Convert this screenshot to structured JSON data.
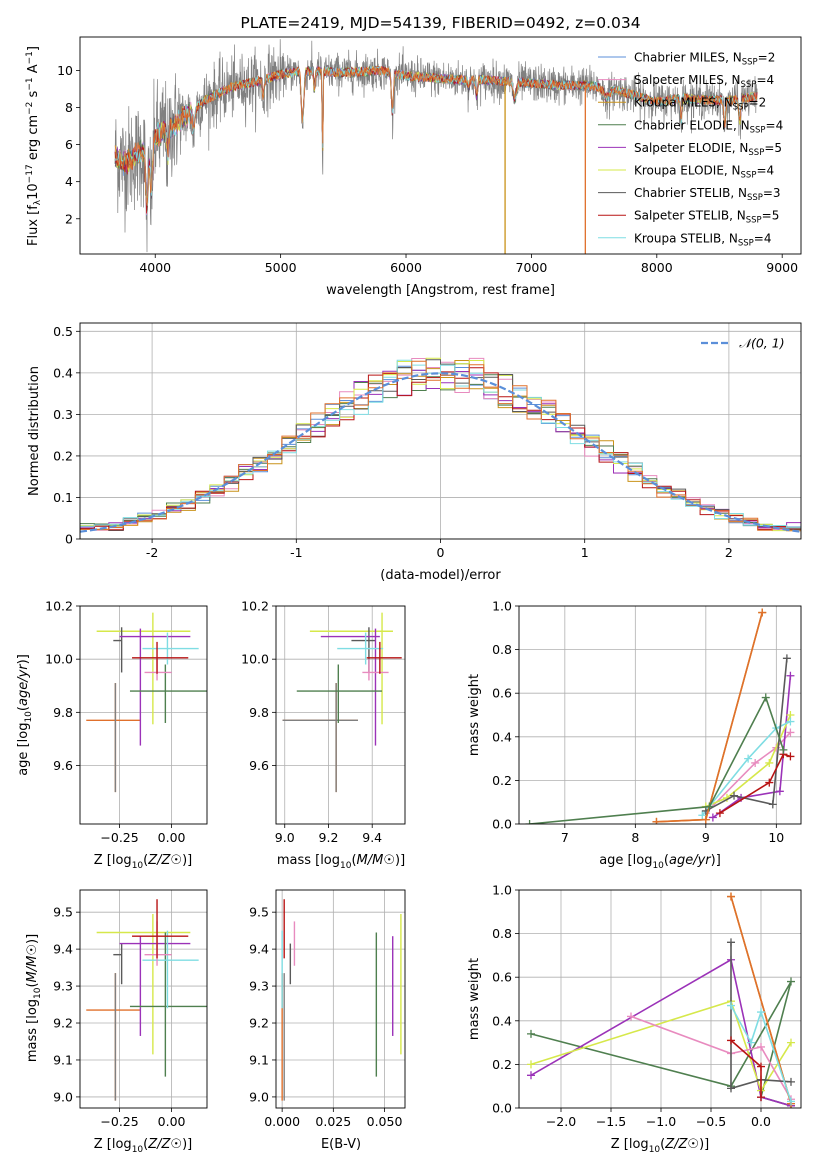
{
  "figure": {
    "title": "PLATE=2419, MJD=54139, FIBERID=0492, z=0.034"
  },
  "colors": {
    "Chabrier MILES": "#5b8fd9",
    "Salpeter MILES": "#e88bbf",
    "Kroupa MILES": "#c9921a",
    "Chabrier ELODIE": "#4f7f4f",
    "Salpeter ELODIE": "#9b32b8",
    "Kroupa ELODIE": "#d6e84a",
    "Chabrier STELIB": "#5a5a5a",
    "Salpeter STELIB": "#b81414",
    "Kroupa STELIB": "#7fdde3",
    "orange": "#e0702c",
    "gray": "#808080",
    "normal": "#5b8fd9"
  },
  "chart_data": [
    {
      "id": "spectrum",
      "type": "line",
      "title": "PLATE=2419, MJD=54139, FIBERID=0492, z=0.034",
      "xlabel": "wavelength [Angstrom, rest frame]",
      "ylabel": "Flux [f_λ10^-17 erg cm^-2 s^-1 A^-1]",
      "xlim": [
        3400,
        9150
      ],
      "ylim": [
        0.1,
        11.8
      ],
      "xticks": [
        4000,
        5000,
        6000,
        7000,
        8000,
        9000
      ],
      "yticks": [
        2,
        4,
        6,
        8,
        10
      ],
      "grid": false,
      "legend_position": "top-right",
      "legend": [
        {
          "label": "Chabrier MILES, N",
          "sub": "SSP",
          "suffix": "=2",
          "color": "#5b8fd9"
        },
        {
          "label": "Salpeter MILES, N",
          "sub": "SSP",
          "suffix": "=4",
          "color": "#e88bbf"
        },
        {
          "label": "Kroupa MILES, N",
          "sub": "SSP",
          "suffix": "=2",
          "color": "#c9921a"
        },
        {
          "label": "Chabrier ELODIE, N",
          "sub": "SSP",
          "suffix": "=4",
          "color": "#4f7f4f"
        },
        {
          "label": "Salpeter ELODIE, N",
          "sub": "SSP",
          "suffix": "=5",
          "color": "#9b32b8"
        },
        {
          "label": "Kroupa ELODIE, N",
          "sub": "SSP",
          "suffix": "=4",
          "color": "#d6e84a"
        },
        {
          "label": "Chabrier STELIB, N",
          "sub": "SSP",
          "suffix": "=3",
          "color": "#5a5a5a"
        },
        {
          "label": "Salpeter STELIB, N",
          "sub": "SSP",
          "suffix": "=5",
          "color": "#b81414"
        },
        {
          "label": "Kroupa STELIB, N",
          "sub": "SSP",
          "suffix": "=4",
          "color": "#7fdde3"
        }
      ],
      "continuum": {
        "x": [
          3680,
          3750,
          3900,
          4000,
          4200,
          4400,
          4600,
          4800,
          5000,
          5200,
          5400,
          5600,
          5800,
          6000,
          6200,
          6400,
          6600,
          6800,
          7000,
          7200,
          7400,
          7600,
          7800,
          8000,
          8200,
          8400,
          8600,
          8800
        ],
        "y": [
          5.4,
          5.0,
          5.6,
          6.4,
          7.3,
          8.4,
          9.1,
          9.4,
          9.8,
          10.0,
          9.9,
          9.9,
          10.0,
          9.7,
          9.6,
          9.5,
          9.5,
          9.4,
          9.3,
          9.2,
          9.2,
          9.1,
          8.7,
          8.3,
          8.5,
          8.4,
          8.4,
          8.6
        ]
      },
      "vertical_drops": [
        {
          "x": 6790,
          "y_min": 0.1,
          "color": "#c9921a"
        },
        {
          "x": 7430,
          "y_min": 0.1,
          "color": "#e0702c"
        }
      ]
    },
    {
      "id": "residuals",
      "type": "histogram",
      "xlabel": "(data-model)/error",
      "ylabel": "Normed distribution",
      "xlim": [
        -2.5,
        2.5
      ],
      "ylim": [
        0,
        0.52
      ],
      "xticks": [
        -2,
        -1,
        0,
        1,
        2
      ],
      "yticks": [
        0.0,
        0.1,
        0.2,
        0.3,
        0.4,
        0.5
      ],
      "grid": true,
      "legend_position": "top-right",
      "legend": [
        {
          "label": "𝒩(0, 1)",
          "color": "#5b8fd9",
          "style": "dashed"
        }
      ],
      "bin_width": 0.1,
      "bin_start": -2.5,
      "n_bins": 50
    },
    {
      "id": "age-Z",
      "type": "scatter",
      "xlabel": "Z [log10(Z/Z☉)]",
      "ylabel": "age  [log10(age/yr)]",
      "xlim": [
        -0.44,
        0.17
      ],
      "ylim": [
        9.38,
        10.2
      ],
      "xticks": [
        -0.25,
        0.0
      ],
      "xticklabels": [
        "−0.25",
        "0.00"
      ],
      "yticks": [
        9.6,
        9.8,
        10.0,
        10.2
      ],
      "yticklabels": [
        "9.6",
        "9.8",
        "10.0",
        "10.2"
      ],
      "grid": true
    },
    {
      "id": "age-mass",
      "type": "scatter",
      "xlabel": "mass [log10(M/M☉)]",
      "xlim": [
        8.96,
        9.55
      ],
      "ylim": [
        9.38,
        10.2
      ],
      "xticks": [
        9.0,
        9.2,
        9.4
      ],
      "xticklabels": [
        "9.0",
        "9.2",
        "9.4"
      ],
      "yticks": [
        9.6,
        9.8,
        10.0,
        10.2
      ],
      "yticklabels": [
        "9.6",
        "9.8",
        "10.0",
        "10.2"
      ],
      "grid": true
    },
    {
      "id": "weight-age",
      "type": "line",
      "xlabel": "age  [log10(age/yr)]",
      "ylabel": "mass weight",
      "xlim": [
        6.35,
        10.35
      ],
      "ylim": [
        0,
        1.0
      ],
      "xticks": [
        7,
        8,
        9,
        10
      ],
      "xticklabels": [
        "7",
        "8",
        "9",
        "10"
      ],
      "yticks": [
        0.0,
        0.2,
        0.4,
        0.6,
        0.8,
        1.0
      ],
      "yticklabels": [
        "0.0",
        "0.2",
        "0.4",
        "0.6",
        "0.8",
        "1.0"
      ],
      "grid": true,
      "series": [
        {
          "color": "#e88bbf",
          "x": [
            9.0,
            9.7,
            10.0,
            10.2
          ],
          "y": [
            0.05,
            0.28,
            0.35,
            0.42
          ]
        },
        {
          "color": "#9b32b8",
          "x": [
            9.1,
            9.5,
            10.05,
            10.2
          ],
          "y": [
            0.03,
            0.12,
            0.15,
            0.68
          ]
        },
        {
          "color": "#d6e84a",
          "x": [
            9.0,
            9.3,
            9.9,
            10.2
          ],
          "y": [
            0.08,
            0.12,
            0.28,
            0.5
          ]
        },
        {
          "color": "#7fdde3",
          "x": [
            8.95,
            9.6,
            10.0,
            10.2
          ],
          "y": [
            0.04,
            0.3,
            0.44,
            0.47
          ]
        },
        {
          "color": "#5a5a5a",
          "x": [
            9.0,
            9.4,
            9.95,
            10.15
          ],
          "y": [
            0.06,
            0.13,
            0.09,
            0.76
          ]
        },
        {
          "color": "#b81414",
          "x": [
            9.2,
            9.9,
            10.1,
            10.2
          ],
          "y": [
            0.05,
            0.19,
            0.32,
            0.31
          ]
        },
        {
          "color": "#c9921a",
          "x": [
            8.3,
            9.0,
            9.8
          ],
          "y": [
            0.01,
            0.02,
            0.97
          ]
        },
        {
          "color": "#e0702c",
          "x": [
            8.3,
            9.0,
            9.8
          ],
          "y": [
            0.01,
            0.02,
            0.97
          ]
        },
        {
          "color": "#4f7f4f",
          "x": [
            6.5,
            9.05,
            9.85,
            10.1
          ],
          "y": [
            0.0,
            0.08,
            0.58,
            0.34
          ]
        }
      ]
    },
    {
      "id": "mass-Z",
      "type": "scatter",
      "xlabel": "Z [log10(Z/Z☉)]",
      "ylabel": "mass [log10(M/M☉)]",
      "xlim": [
        -0.44,
        0.17
      ],
      "ylim": [
        8.97,
        9.56
      ],
      "xticks": [
        -0.25,
        0.0
      ],
      "xticklabels": [
        "−0.25",
        "0.00"
      ],
      "yticks": [
        9.0,
        9.1,
        9.2,
        9.3,
        9.4,
        9.5
      ],
      "yticklabels": [
        "9.0",
        "9.1",
        "9.2",
        "9.3",
        "9.4",
        "9.5"
      ],
      "grid": true
    },
    {
      "id": "mass-EBV",
      "type": "scatter",
      "xlabel": "E(B-V)",
      "xlim": [
        -0.003,
        0.06
      ],
      "ylim": [
        8.97,
        9.56
      ],
      "xticks": [
        0.0,
        0.025,
        0.05
      ],
      "xticklabels": [
        "0.000",
        "0.025",
        "0.050"
      ],
      "yticks": [
        9.0,
        9.1,
        9.2,
        9.3,
        9.4,
        9.5
      ],
      "yticklabels": [
        "9.0",
        "9.1",
        "9.2",
        "9.3",
        "9.4",
        "9.5"
      ],
      "grid": true
    },
    {
      "id": "weight-Z",
      "type": "line",
      "xlabel": "Z [log10(Z/Z☉)]",
      "ylabel": "mass weight",
      "xlim": [
        -2.42,
        0.4
      ],
      "ylim": [
        0,
        1.0
      ],
      "xticks": [
        -2.0,
        -1.5,
        -1.0,
        -0.5,
        0.0
      ],
      "xticklabels": [
        "−2.0",
        "−1.5",
        "−1.0",
        "−0.5",
        "0.0"
      ],
      "yticks": [
        0.0,
        0.2,
        0.4,
        0.6,
        0.8,
        1.0
      ],
      "yticklabels": [
        "0.0",
        "0.2",
        "0.4",
        "0.6",
        "0.8",
        "1.0"
      ],
      "grid": true,
      "series": [
        {
          "color": "#4f7f4f",
          "x": [
            -2.3,
            -0.3,
            0.3,
            0.0,
            0.3
          ],
          "y": [
            0.34,
            0.1,
            0.58,
            0.05,
            0.01
          ]
        },
        {
          "color": "#9b32b8",
          "x": [
            -2.3,
            -0.3,
            0.0,
            0.3
          ],
          "y": [
            0.15,
            0.68,
            0.05,
            0.01
          ]
        },
        {
          "color": "#d6e84a",
          "x": [
            -2.3,
            -0.3,
            0.0,
            0.3
          ],
          "y": [
            0.2,
            0.49,
            0.08,
            0.3
          ]
        },
        {
          "color": "#e88bbf",
          "x": [
            -1.3,
            -0.3,
            0.0,
            0.3
          ],
          "y": [
            0.42,
            0.25,
            0.28,
            0.04
          ]
        },
        {
          "color": "#c9921a",
          "x": [
            -0.3,
            0.3
          ],
          "y": [
            0.97,
            0.02
          ]
        },
        {
          "color": "#e0702c",
          "x": [
            -0.3,
            0.3
          ],
          "y": [
            0.97,
            0.02
          ]
        },
        {
          "color": "#5a5a5a",
          "x": [
            -0.3,
            -0.3,
            0.0,
            0.3
          ],
          "y": [
            0.76,
            0.09,
            0.13,
            0.12
          ]
        },
        {
          "color": "#b81414",
          "x": [
            -0.3,
            0.0,
            0.0
          ],
          "y": [
            0.31,
            0.19,
            0.05
          ]
        },
        {
          "color": "#7fdde3",
          "x": [
            -0.3,
            -0.1,
            0.0,
            0.3
          ],
          "y": [
            0.47,
            0.3,
            0.44,
            0.03
          ]
        }
      ]
    }
  ],
  "errorbars": {
    "models": [
      {
        "color": "#e0702c",
        "Z": -0.27,
        "Zerr": [
          0.14,
          0.12
        ],
        "age": 9.77,
        "ageErr": [
          0.27,
          0.14
        ],
        "mass": 9.235,
        "massErr": [
          0.245,
          0.1
        ],
        "ebv": 0.0,
        "ebvErr": 0.0
      },
      {
        "color": "#808080",
        "Z": -0.27,
        "Zerr": [
          0.0,
          0.0
        ],
        "age": 9.77,
        "ageErr": [
          0.27,
          0.14
        ],
        "mass": 9.235,
        "massErr": [
          0.245,
          0.1
        ],
        "ebv": 0.001,
        "ebvErr": 0.0
      },
      {
        "color": "#d6e84a",
        "Z": -0.09,
        "Zerr": [
          0.27,
          0.18
        ],
        "age": 10.105,
        "ageErr": [
          0.35,
          0.07
        ],
        "mass": 9.445,
        "massErr": [
          0.33,
          0.05
        ],
        "ebv": 0.058,
        "ebvErr": 0.0
      },
      {
        "color": "#5a5a5a",
        "Z": -0.24,
        "Zerr": [
          0.04,
          0.0
        ],
        "age": 10.07,
        "ageErr": [
          0.12,
          0.05
        ],
        "mass": 9.385,
        "massErr": [
          0.08,
          0.03
        ],
        "ebv": 0.004,
        "ebvErr": 0.0
      },
      {
        "color": "#9b32b8",
        "Z": -0.15,
        "Zerr": [
          0.1,
          0.24
        ],
        "age": 10.085,
        "ageErr": [
          0.41,
          0.03
        ],
        "mass": 9.415,
        "massErr": [
          0.25,
          0.02
        ],
        "ebv": 0.054,
        "ebvErr": 0.0
      },
      {
        "color": "#4f7f4f",
        "Z": -0.03,
        "Zerr": [
          0.17,
          0.2
        ],
        "age": 9.88,
        "ageErr": [
          0.12,
          0.1
        ],
        "mass": 9.245,
        "massErr": [
          0.19,
          0.2
        ],
        "ebv": 0.046,
        "ebvErr": 0.0
      },
      {
        "color": "#7fdde3",
        "Z": -0.02,
        "Zerr": [
          0.12,
          0.15
        ],
        "age": 10.04,
        "ageErr": [
          0.06,
          0.06
        ],
        "mass": 9.37,
        "massErr": [
          0.13,
          0.08
        ],
        "ebv": 0.0,
        "ebvErr": 0.0
      },
      {
        "color": "#e88bbf",
        "Z": -0.07,
        "Zerr": [
          0.06,
          0.07
        ],
        "age": 9.95,
        "ageErr": [
          0.03,
          0.05
        ],
        "mass": 9.385,
        "massErr": [
          0.03,
          0.09
        ],
        "ebv": 0.006,
        "ebvErr": 0.0
      },
      {
        "color": "#b81414",
        "Z": -0.07,
        "Zerr": [
          0.12,
          0.15
        ],
        "age": 10.005,
        "ageErr": [
          0.06,
          0.06
        ],
        "mass": 9.435,
        "massErr": [
          0.06,
          0.1
        ],
        "ebv": 0.001,
        "ebvErr": 0.0
      }
    ]
  }
}
